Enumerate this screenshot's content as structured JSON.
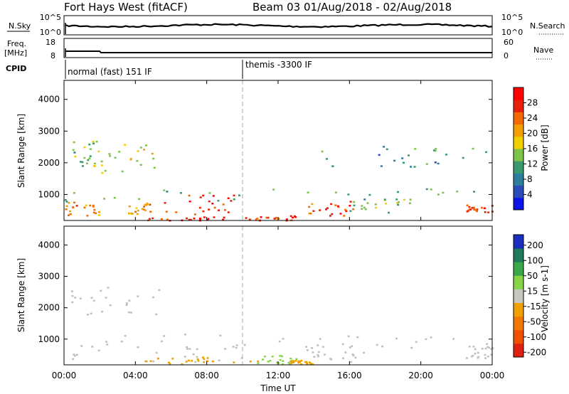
{
  "header": {
    "station": "Fort Hays West (fitACF)",
    "beam": "Beam 03 01/Aug/2018 - 02/Aug/2018"
  },
  "strips": {
    "nsky": {
      "label": "N.Sky",
      "ticks": [
        "10^5",
        "10^0"
      ]
    },
    "nsearch": {
      "label": "N.Search",
      "ticks": [
        "10^5",
        "10^0"
      ]
    },
    "freq": {
      "label_line1": "Freq.",
      "label_line2": "[MHz]",
      "ticks": [
        "18",
        "8"
      ]
    },
    "nave": {
      "label": "Nave",
      "ticks": [
        "60",
        "0"
      ]
    },
    "cpid": {
      "label": "CPID",
      "modes": [
        "normal (fast) 151 IF",
        "themis -3300 IF"
      ],
      "mode_change_hour": 10
    }
  },
  "time_axis": {
    "label": "Time UT",
    "ticks": [
      "00:00",
      "04:00",
      "08:00",
      "12:00",
      "16:00",
      "20:00",
      "00:00"
    ]
  },
  "colors": {
    "power_scale": [
      "#0a14e6",
      "#2a4bb8",
      "#2d7d9c",
      "#3a9a6e",
      "#7ec44a",
      "#f0d000",
      "#f5a000",
      "#f56a00",
      "#e8200a",
      "#ff0000"
    ],
    "velocity_scale": [
      "#1a2fbf",
      "#1e7a5a",
      "#3aa84a",
      "#88d448",
      "#c8c8c0",
      "#f0a000",
      "#f07800",
      "#f05000",
      "#e02010"
    ],
    "ground_scatter": "#c0c0bc"
  },
  "chart_data": [
    {
      "type": "heatmap",
      "title": "",
      "xlabel": "Time UT",
      "ylabel": "Slant Range [km]",
      "x_range_hours": [
        0,
        24
      ],
      "y_ticks": [
        1000,
        2000,
        3000,
        4000
      ],
      "ylim": [
        180,
        4600
      ],
      "colorbar": {
        "label": "Power [dB]",
        "ticks": [
          28,
          24,
          20,
          16,
          12,
          8,
          4
        ],
        "range": [
          0,
          32
        ]
      },
      "regions": [
        {
          "t0": 0.2,
          "t1": 1.8,
          "r0": 1900,
          "r1": 2700,
          "value": 13
        },
        {
          "t0": 1.8,
          "t1": 5.2,
          "r0": 1700,
          "r1": 2600,
          "value": 17
        },
        {
          "t0": 0.0,
          "t1": 24.0,
          "r0": 800,
          "r1": 1200,
          "value": 12
        },
        {
          "t0": 0.0,
          "t1": 2.0,
          "r0": 350,
          "r1": 800,
          "value": 22
        },
        {
          "t0": 3.5,
          "t1": 4.8,
          "r0": 400,
          "r1": 800,
          "value": 22
        },
        {
          "t0": 5.5,
          "t1": 10.0,
          "r0": 300,
          "r1": 1100,
          "value": 26
        },
        {
          "t0": 4.5,
          "t1": 9.0,
          "r0": 200,
          "r1": 320,
          "value": 27
        },
        {
          "t0": 10.0,
          "t1": 13.2,
          "r0": 200,
          "r1": 350,
          "value": 26
        },
        {
          "t0": 13.5,
          "t1": 16.2,
          "r0": 350,
          "r1": 800,
          "value": 26
        },
        {
          "t0": 16.0,
          "t1": 19.5,
          "r0": 450,
          "r1": 900,
          "value": 14
        },
        {
          "t0": 22.5,
          "t1": 24.0,
          "r0": 450,
          "r1": 700,
          "value": 27
        },
        {
          "t0": 14.0,
          "t1": 24.0,
          "r0": 1900,
          "r1": 2600,
          "value": 10
        }
      ]
    },
    {
      "type": "heatmap",
      "title": "",
      "xlabel": "Time UT",
      "ylabel": "Slant Range [km]",
      "x_range_hours": [
        0,
        24
      ],
      "y_ticks": [
        1000,
        2000,
        3000,
        4000
      ],
      "ylim": [
        180,
        4600
      ],
      "colorbar": {
        "label": "Velocity [m s-1]",
        "ticks": [
          200,
          100,
          50,
          15,
          -15,
          -50,
          -100,
          -200
        ]
      },
      "regions": [
        {
          "t0": 0.2,
          "t1": 5.5,
          "r0": 1800,
          "r1": 2700,
          "value": 0
        },
        {
          "t0": 0.0,
          "t1": 24.0,
          "r0": 750,
          "r1": 1200,
          "value": 0
        },
        {
          "t0": 0.0,
          "t1": 10.0,
          "r0": 300,
          "r1": 800,
          "value": 0
        },
        {
          "t0": 4.5,
          "t1": 11.0,
          "r0": 220,
          "r1": 450,
          "value": -40
        },
        {
          "t0": 10.8,
          "t1": 13.0,
          "r0": 220,
          "r1": 500,
          "value": 40
        },
        {
          "t0": 12.5,
          "t1": 14.0,
          "r0": 220,
          "r1": 350,
          "value": -40
        },
        {
          "t0": 13.5,
          "t1": 17.0,
          "r0": 300,
          "r1": 800,
          "value": 0
        },
        {
          "t0": 22.5,
          "t1": 24.0,
          "r0": 400,
          "r1": 800,
          "value": 0
        }
      ]
    }
  ]
}
